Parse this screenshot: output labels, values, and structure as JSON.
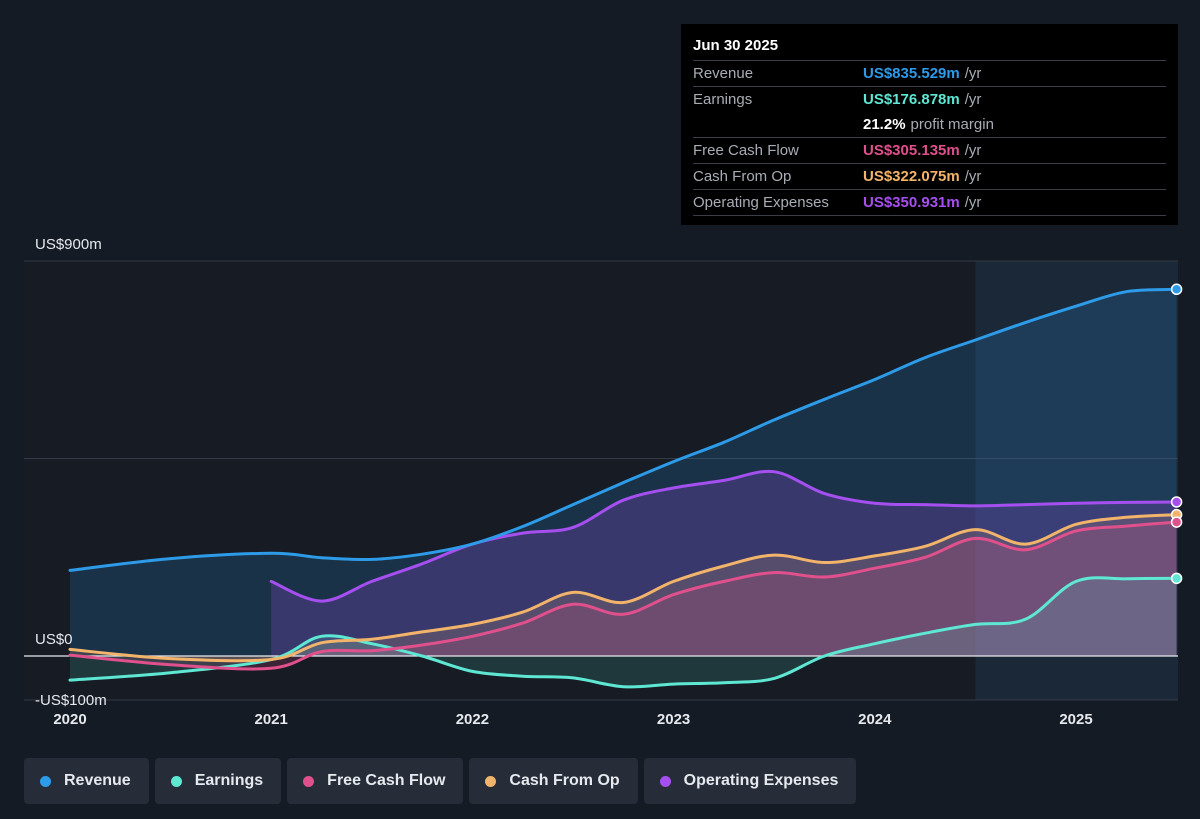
{
  "tooltip": {
    "date": "Jun 30 2025",
    "rows": [
      {
        "label": "Revenue",
        "value": "US$835.529m",
        "unit": "/yr",
        "color": "#2d9be8"
      },
      {
        "label": "Earnings",
        "value": "US$176.878m",
        "unit": "/yr",
        "color": "#5ee7d2"
      },
      {
        "label": "",
        "value": "21.2%",
        "unit": "profit margin",
        "color": "#ffffff"
      },
      {
        "label": "Free Cash Flow",
        "value": "US$305.135m",
        "unit": "/yr",
        "color": "#e0508c"
      },
      {
        "label": "Cash From Op",
        "value": "US$322.075m",
        "unit": "/yr",
        "color": "#f2b46a"
      },
      {
        "label": "Operating Expenses",
        "value": "US$350.931m",
        "unit": "/yr",
        "color": "#a64ff0"
      }
    ]
  },
  "legend": [
    {
      "label": "Revenue",
      "color": "#2d9be8"
    },
    {
      "label": "Earnings",
      "color": "#5ee7d2"
    },
    {
      "label": "Free Cash Flow",
      "color": "#e0508c"
    },
    {
      "label": "Cash From Op",
      "color": "#f2b46a"
    },
    {
      "label": "Operating Expenses",
      "color": "#a64ff0"
    }
  ],
  "chart_data": {
    "type": "area",
    "title": "",
    "xlabel": "",
    "ylabel": "",
    "y_tick_labels": [
      "US$900m",
      "US$0",
      "-US$100m"
    ],
    "x_tick_labels": [
      "2020",
      "2021",
      "2022",
      "2023",
      "2024",
      "2025"
    ],
    "ylim": [
      -100,
      900
    ],
    "xlim": [
      2019.9,
      2025.52
    ],
    "highlight_from": 2024.5,
    "grid": true,
    "legend_position": "bottom",
    "series": [
      {
        "name": "Revenue",
        "color": "#2d9be8",
        "points": [
          [
            2020,
            195
          ],
          [
            2020.5,
            222
          ],
          [
            2021,
            234
          ],
          [
            2021.25,
            224
          ],
          [
            2021.5,
            220
          ],
          [
            2021.75,
            232
          ],
          [
            2022,
            255
          ],
          [
            2022.25,
            295
          ],
          [
            2022.5,
            345
          ],
          [
            2022.75,
            395
          ],
          [
            2023,
            443
          ],
          [
            2023.25,
            487
          ],
          [
            2023.5,
            538
          ],
          [
            2023.75,
            585
          ],
          [
            2024,
            630
          ],
          [
            2024.25,
            680
          ],
          [
            2024.5,
            720
          ],
          [
            2024.75,
            760
          ],
          [
            2025,
            797
          ],
          [
            2025.25,
            830
          ],
          [
            2025.5,
            835.529
          ]
        ]
      },
      {
        "name": "Earnings",
        "color": "#5ee7d2",
        "points": [
          [
            2020,
            -55
          ],
          [
            2020.5,
            -38
          ],
          [
            2021,
            -8
          ],
          [
            2021.25,
            45
          ],
          [
            2021.5,
            28
          ],
          [
            2021.75,
            0
          ],
          [
            2022,
            -35
          ],
          [
            2022.25,
            -46
          ],
          [
            2022.5,
            -50
          ],
          [
            2022.75,
            -70
          ],
          [
            2023,
            -64
          ],
          [
            2023.25,
            -61
          ],
          [
            2023.5,
            -51
          ],
          [
            2023.75,
            0
          ],
          [
            2024,
            28
          ],
          [
            2024.25,
            52
          ],
          [
            2024.5,
            72
          ],
          [
            2024.75,
            84
          ],
          [
            2025,
            170
          ],
          [
            2025.25,
            176
          ],
          [
            2025.5,
            176.878
          ]
        ]
      },
      {
        "name": "Free Cash Flow",
        "color": "#e0508c",
        "points": [
          [
            2020,
            2
          ],
          [
            2020.5,
            -20
          ],
          [
            2021,
            -28
          ],
          [
            2021.25,
            10
          ],
          [
            2021.5,
            12
          ],
          [
            2021.75,
            25
          ],
          [
            2022,
            45
          ],
          [
            2022.25,
            75
          ],
          [
            2022.5,
            118
          ],
          [
            2022.75,
            95
          ],
          [
            2023,
            140
          ],
          [
            2023.25,
            170
          ],
          [
            2023.5,
            190
          ],
          [
            2023.75,
            180
          ],
          [
            2024,
            200
          ],
          [
            2024.25,
            225
          ],
          [
            2024.5,
            268
          ],
          [
            2024.75,
            242
          ],
          [
            2025,
            285
          ],
          [
            2025.25,
            296
          ],
          [
            2025.5,
            305.135
          ]
        ]
      },
      {
        "name": "Cash From Op",
        "color": "#f2b46a",
        "points": [
          [
            2020,
            15
          ],
          [
            2020.5,
            -6
          ],
          [
            2021,
            -8
          ],
          [
            2021.25,
            30
          ],
          [
            2021.5,
            38
          ],
          [
            2021.75,
            55
          ],
          [
            2022,
            72
          ],
          [
            2022.25,
            100
          ],
          [
            2022.5,
            145
          ],
          [
            2022.75,
            122
          ],
          [
            2023,
            170
          ],
          [
            2023.25,
            205
          ],
          [
            2023.5,
            230
          ],
          [
            2023.75,
            213
          ],
          [
            2024,
            228
          ],
          [
            2024.25,
            250
          ],
          [
            2024.5,
            288
          ],
          [
            2024.75,
            255
          ],
          [
            2025,
            300
          ],
          [
            2025.25,
            316
          ],
          [
            2025.5,
            322.075
          ]
        ]
      },
      {
        "name": "Operating Expenses",
        "color": "#a64ff0",
        "points": [
          [
            2021,
            170
          ],
          [
            2021.25,
            125
          ],
          [
            2021.5,
            170
          ],
          [
            2021.75,
            210
          ],
          [
            2022,
            255
          ],
          [
            2022.25,
            280
          ],
          [
            2022.5,
            293
          ],
          [
            2022.75,
            355
          ],
          [
            2023,
            383
          ],
          [
            2023.25,
            400
          ],
          [
            2023.5,
            420
          ],
          [
            2023.75,
            370
          ],
          [
            2024,
            348
          ],
          [
            2024.25,
            345
          ],
          [
            2024.5,
            342
          ],
          [
            2024.75,
            345
          ],
          [
            2025,
            348
          ],
          [
            2025.25,
            350
          ],
          [
            2025.5,
            350.931
          ]
        ]
      }
    ]
  }
}
